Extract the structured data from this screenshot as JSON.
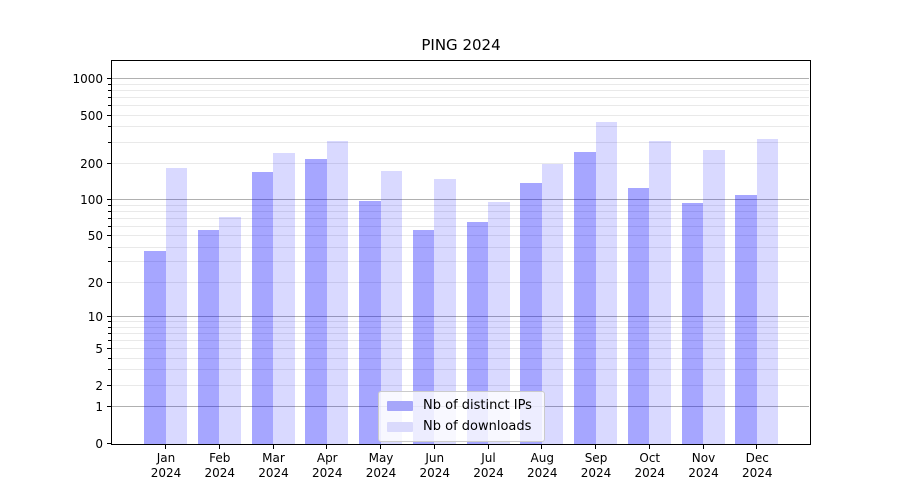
{
  "figure": {
    "title": "PING 2024"
  },
  "chart_data": {
    "type": "bar",
    "title": "PING 2024",
    "categories": [
      "Jan 2024",
      "Feb 2024",
      "Mar 2024",
      "Apr 2024",
      "May 2024",
      "Jun 2024",
      "Jul 2024",
      "Aug 2024",
      "Sep 2024",
      "Oct 2024",
      "Nov 2024",
      "Dec 2024"
    ],
    "series": [
      {
        "name": "Nb of distinct IPs",
        "color": "rgba(0,0,255,0.35)",
        "legend_swatch": "#a6a6fa",
        "values": [
          38,
          57,
          172,
          222,
          100,
          57,
          67,
          139,
          255,
          128,
          95,
          111
        ]
      },
      {
        "name": "Nb of downloads",
        "color": "rgba(0,0,255,0.15)",
        "legend_swatch": "#dadafc",
        "values": [
          186,
          73,
          250,
          315,
          175,
          150,
          97,
          203,
          450,
          310,
          264,
          322
        ]
      }
    ],
    "y_axis": {
      "scale": "log(x+1)",
      "ticks": [
        0,
        1,
        2,
        5,
        10,
        20,
        50,
        100,
        200,
        500,
        1000
      ],
      "max": 1400
    },
    "grid": {
      "major_ticks": [
        1,
        10,
        100,
        1000
      ],
      "major_color": "#b0b0b0",
      "minor_color": "#e9e9e9"
    },
    "legend": {
      "position": "lower center"
    }
  }
}
